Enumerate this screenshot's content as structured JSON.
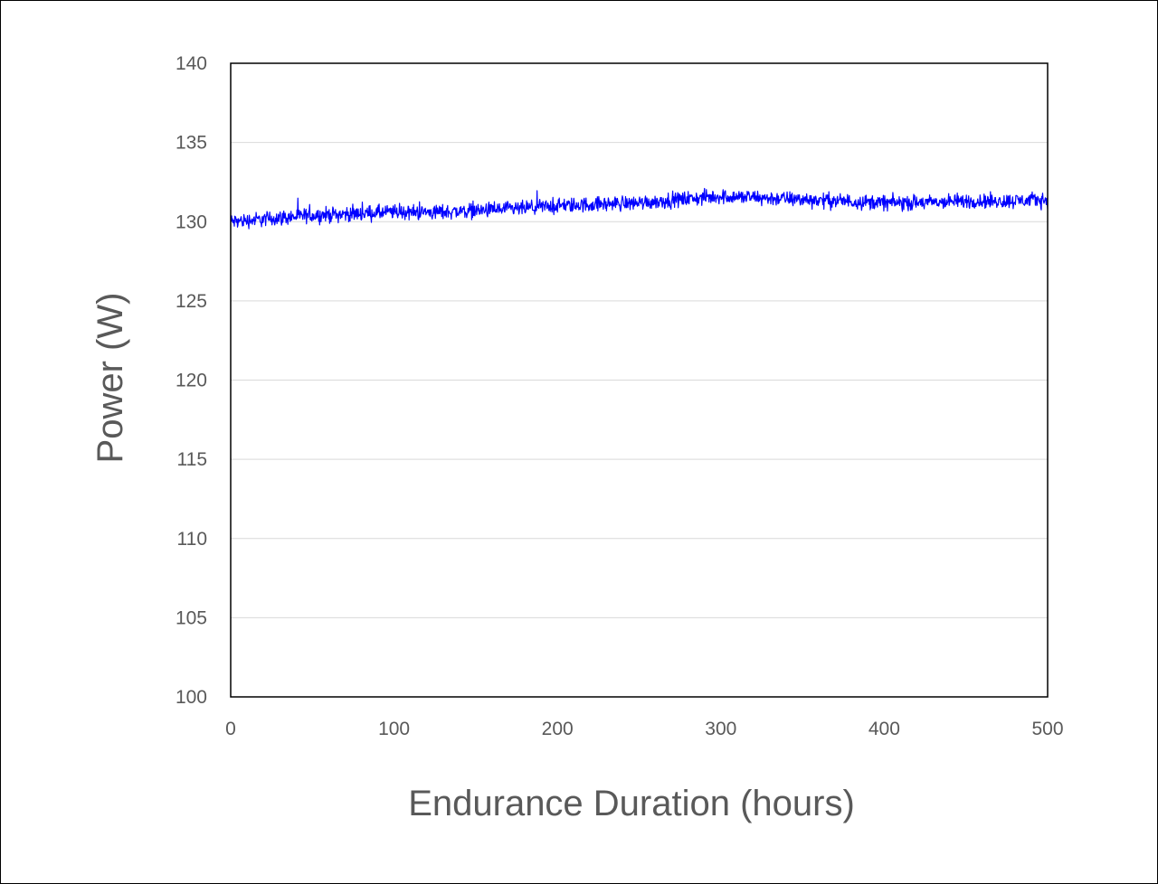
{
  "chart_data": {
    "type": "line",
    "title": "",
    "xlabel": "Endurance Duration (hours)",
    "ylabel": "Power (W)",
    "xlim": [
      0,
      500
    ],
    "ylim": [
      100,
      140
    ],
    "x_ticks": [
      0,
      100,
      200,
      300,
      400,
      500
    ],
    "y_ticks": [
      100,
      105,
      110,
      115,
      120,
      125,
      130,
      135,
      140
    ],
    "grid": "horizontal",
    "legend": "none",
    "series": [
      {
        "color": "#0000FF",
        "x": [
          0,
          25,
          50,
          75,
          100,
          125,
          150,
          175,
          200,
          225,
          250,
          275,
          300,
          325,
          350,
          375,
          400,
          425,
          450,
          475,
          500
        ],
        "y": [
          130.0,
          130.2,
          130.4,
          130.5,
          130.6,
          130.6,
          130.7,
          130.8,
          131.0,
          131.1,
          131.2,
          131.4,
          131.6,
          131.5,
          131.4,
          131.3,
          131.2,
          131.2,
          131.3,
          131.3,
          131.4
        ],
        "noise_band": 0.7
      }
    ]
  }
}
